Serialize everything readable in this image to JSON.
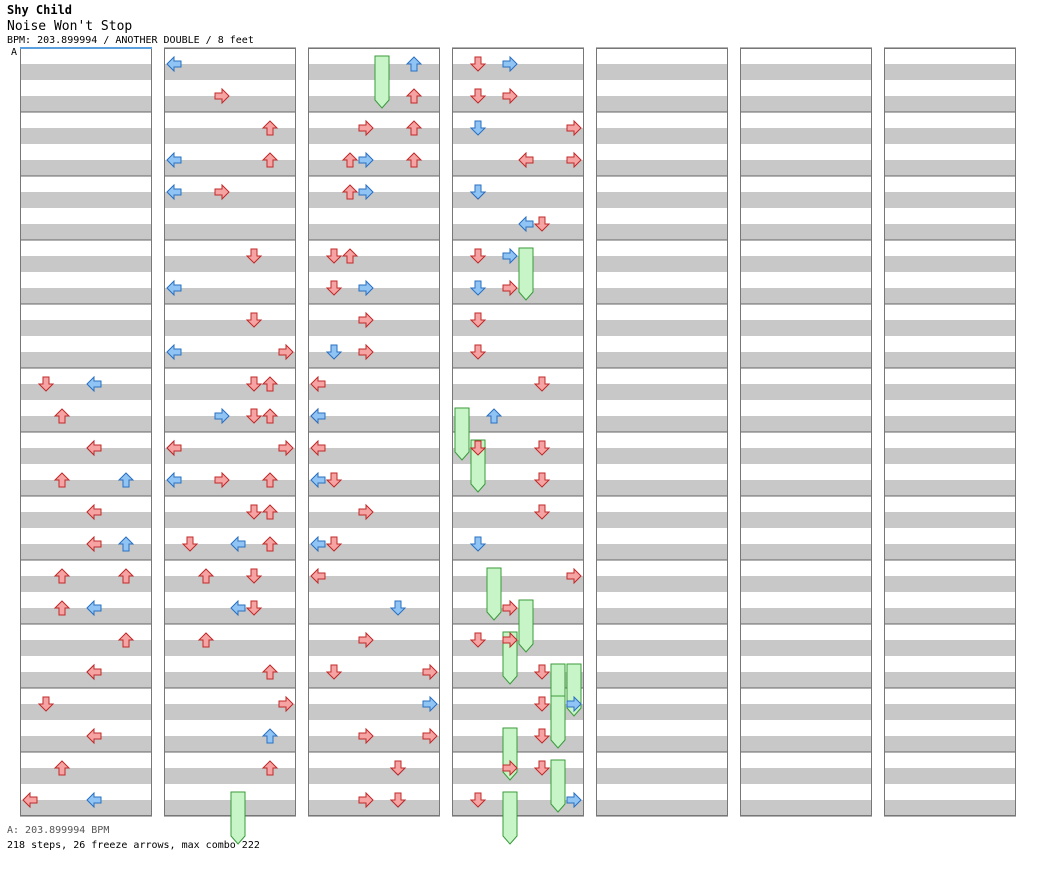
{
  "header": {
    "artist": "Shy Child",
    "title": "Noise Won't Stop",
    "info": "BPM: 203.899994 / ANOTHER DOUBLE / 8 feet",
    "bpm_marker": "A"
  },
  "footer": {
    "bpm_line": "A: 203.899994 BPM",
    "stats": "218 steps, 26 freeze arrows, max combo 222"
  },
  "colors": {
    "stripe_gray": "#c8c8c8",
    "red_arrow": "#f5a3a3",
    "red_outline": "#c02828",
    "blue_arrow": "#8fc4f5",
    "blue_outline": "#2a6fc0",
    "freeze_fill": "#c8f5c8",
    "freeze_outline": "#3a9a3a"
  },
  "chart_data": {
    "type": "table",
    "columns": 7,
    "measures_per_column": 12,
    "lanes": 8,
    "arrows": [
      [
        0,
        10,
        1,
        "r"
      ],
      [
        0,
        10,
        4,
        "b"
      ],
      [
        0,
        11,
        10,
        "r"
      ],
      [
        0,
        12,
        4,
        "b"
      ],
      [
        0,
        12,
        12,
        "r"
      ],
      [
        0,
        13,
        10,
        "r"
      ],
      [
        0,
        13,
        14,
        "b"
      ],
      [
        0,
        14,
        12,
        "r"
      ],
      [
        0,
        15,
        6,
        "b"
      ],
      [
        0,
        15,
        12,
        "r"
      ],
      [
        0,
        16,
        10,
        "r"
      ],
      [
        0,
        16,
        14,
        "r"
      ],
      [
        0,
        17,
        4,
        "b"
      ],
      [
        0,
        17,
        10,
        "r"
      ],
      [
        0,
        18,
        14,
        "r"
      ],
      [
        0,
        19,
        4,
        "b"
      ],
      [
        0,
        19,
        12,
        "r"
      ],
      [
        0,
        20,
        1,
        "r"
      ],
      [
        0,
        21,
        4,
        "r"
      ],
      [
        0,
        22,
        2,
        "r"
      ],
      [
        0,
        23,
        4,
        "b"
      ],
      [
        0,
        23,
        0,
        "r"
      ],
      [
        1,
        0,
        0,
        "b"
      ],
      [
        1,
        1,
        11,
        "r"
      ],
      [
        1,
        2,
        6,
        "r"
      ],
      [
        1,
        3,
        8,
        "b"
      ],
      [
        1,
        3,
        6,
        "r"
      ],
      [
        1,
        4,
        8,
        "b"
      ],
      [
        1,
        4,
        11,
        "r"
      ],
      [
        1,
        6,
        13,
        "r"
      ],
      [
        1,
        7,
        8,
        "b"
      ],
      [
        1,
        8,
        13,
        "r"
      ],
      [
        1,
        9,
        8,
        "b"
      ],
      [
        1,
        9,
        15,
        "r"
      ],
      [
        1,
        10,
        13,
        "r"
      ],
      [
        1,
        10,
        14,
        "r"
      ],
      [
        1,
        11,
        11,
        "b"
      ],
      [
        1,
        11,
        13,
        "r"
      ],
      [
        1,
        11,
        14,
        "r"
      ],
      [
        1,
        12,
        8,
        "b"
      ],
      [
        1,
        12,
        8,
        "r"
      ],
      [
        1,
        12,
        15,
        "r"
      ],
      [
        1,
        13,
        11,
        "r"
      ],
      [
        1,
        13,
        14,
        "r"
      ],
      [
        1,
        13,
        8,
        "b"
      ],
      [
        1,
        14,
        5,
        "r"
      ],
      [
        1,
        14,
        6,
        "r"
      ],
      [
        1,
        15,
        4,
        "b"
      ],
      [
        1,
        15,
        6,
        "r"
      ],
      [
        1,
        15,
        1,
        "r"
      ],
      [
        1,
        16,
        5,
        "r"
      ],
      [
        1,
        16,
        2,
        "r"
      ],
      [
        1,
        17,
        4,
        "b"
      ],
      [
        1,
        17,
        5,
        "r"
      ],
      [
        1,
        18,
        10,
        "r"
      ],
      [
        1,
        19,
        6,
        "r"
      ],
      [
        1,
        20,
        15,
        "r"
      ],
      [
        1,
        21,
        14,
        "b"
      ],
      [
        1,
        22,
        14,
        "r"
      ],
      [
        2,
        0,
        14,
        "b"
      ],
      [
        2,
        1,
        14,
        "r"
      ],
      [
        2,
        2,
        11,
        "r"
      ],
      [
        2,
        2,
        14,
        "r"
      ],
      [
        2,
        3,
        11,
        "b"
      ],
      [
        2,
        3,
        14,
        "r"
      ],
      [
        2,
        3,
        10,
        "r"
      ],
      [
        2,
        4,
        11,
        "b"
      ],
      [
        2,
        4,
        10,
        "r"
      ],
      [
        2,
        6,
        10,
        "r"
      ],
      [
        2,
        6,
        1,
        "r"
      ],
      [
        2,
        7,
        1,
        "r"
      ],
      [
        2,
        7,
        3,
        "b"
      ],
      [
        2,
        8,
        3,
        "r"
      ],
      [
        2,
        9,
        1,
        "b"
      ],
      [
        2,
        9,
        3,
        "r"
      ],
      [
        2,
        10,
        8,
        "r"
      ],
      [
        2,
        11,
        0,
        "r"
      ],
      [
        2,
        11,
        8,
        "b"
      ],
      [
        2,
        12,
        8,
        "r"
      ],
      [
        2,
        13,
        0,
        "b"
      ],
      [
        2,
        13,
        1,
        "r"
      ],
      [
        2,
        14,
        3,
        "r"
      ],
      [
        2,
        15,
        8,
        "b"
      ],
      [
        2,
        15,
        9,
        "r"
      ],
      [
        2,
        16,
        8,
        "r"
      ],
      [
        2,
        17,
        13,
        "b"
      ],
      [
        2,
        18,
        11,
        "r"
      ],
      [
        2,
        19,
        9,
        "r"
      ],
      [
        2,
        19,
        15,
        "r"
      ],
      [
        2,
        20,
        15,
        "b"
      ],
      [
        2,
        21,
        11,
        "r"
      ],
      [
        2,
        21,
        15,
        "r"
      ],
      [
        2,
        22,
        13,
        "b"
      ],
      [
        2,
        22,
        13,
        "r"
      ],
      [
        2,
        23,
        11,
        "r"
      ],
      [
        2,
        23,
        5,
        "b"
      ],
      [
        2,
        23,
        13,
        "r"
      ],
      [
        3,
        0,
        9,
        "r"
      ],
      [
        3,
        0,
        11,
        "b"
      ],
      [
        3,
        1,
        9,
        "r"
      ],
      [
        3,
        1,
        11,
        "r"
      ],
      [
        3,
        2,
        7,
        "r"
      ],
      [
        3,
        2,
        9,
        "b"
      ],
      [
        3,
        3,
        7,
        "r"
      ],
      [
        3,
        3,
        4,
        "r"
      ],
      [
        3,
        4,
        9,
        "r"
      ],
      [
        3,
        4,
        9,
        "b"
      ],
      [
        3,
        5,
        5,
        "r"
      ],
      [
        3,
        5,
        4,
        "b"
      ],
      [
        3,
        6,
        3,
        "b"
      ],
      [
        3,
        6,
        1,
        "r"
      ],
      [
        3,
        7,
        3,
        "r"
      ],
      [
        3,
        7,
        1,
        "b"
      ],
      [
        3,
        8,
        1,
        "r"
      ],
      [
        3,
        9,
        1,
        "r"
      ],
      [
        3,
        10,
        5,
        "r"
      ],
      [
        3,
        11,
        2,
        "b"
      ],
      [
        3,
        12,
        1,
        "r"
      ],
      [
        3,
        12,
        5,
        "r"
      ],
      [
        3,
        13,
        5,
        "r"
      ],
      [
        3,
        14,
        5,
        "r"
      ],
      [
        3,
        15,
        9,
        "b"
      ],
      [
        3,
        16,
        7,
        "r"
      ],
      [
        3,
        17,
        11,
        "r"
      ],
      [
        3,
        18,
        9,
        "r"
      ],
      [
        3,
        18,
        11,
        "r"
      ],
      [
        3,
        19,
        13,
        "r"
      ],
      [
        3,
        20,
        13,
        "r"
      ],
      [
        3,
        20,
        15,
        "b"
      ],
      [
        3,
        21,
        13,
        "r"
      ],
      [
        3,
        22,
        11,
        "r"
      ],
      [
        3,
        22,
        13,
        "r"
      ],
      [
        3,
        23,
        7,
        "b"
      ],
      [
        3,
        23,
        9,
        "r"
      ]
    ],
    "freezes": [
      [
        2,
        0,
        4,
        "g"
      ],
      [
        3,
        6,
        4,
        "g"
      ],
      [
        3,
        11,
        0,
        "g"
      ],
      [
        3,
        12,
        1,
        "g"
      ],
      [
        3,
        16,
        2,
        "g"
      ],
      [
        3,
        17,
        4,
        "g"
      ],
      [
        3,
        18,
        3,
        "g"
      ],
      [
        3,
        19,
        6,
        "g"
      ],
      [
        3,
        19,
        7,
        "g"
      ],
      [
        3,
        20,
        6,
        "g"
      ],
      [
        3,
        21,
        3,
        "g"
      ],
      [
        3,
        22,
        6,
        "g"
      ],
      [
        3,
        23,
        3,
        "g"
      ],
      [
        1,
        23,
        4,
        "g"
      ]
    ]
  }
}
